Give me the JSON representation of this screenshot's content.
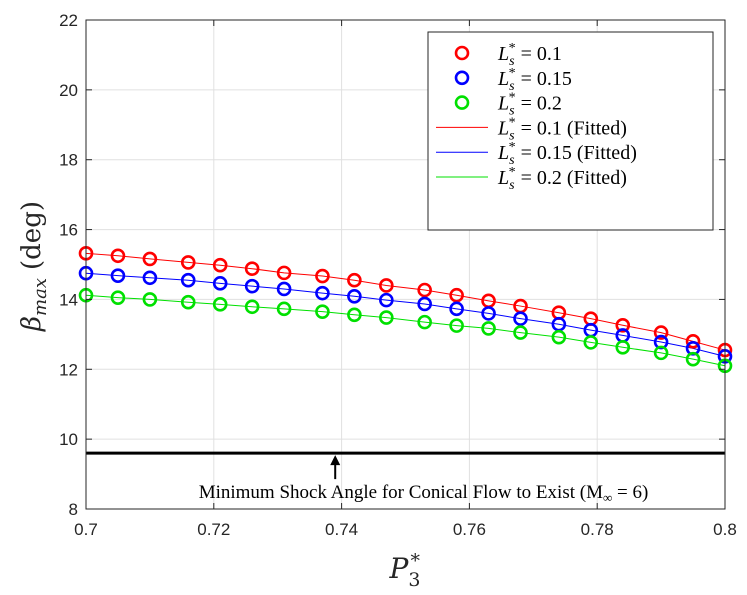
{
  "chart_data": {
    "type": "line",
    "xlabel": "P3*",
    "ylabel": "βmax (deg)",
    "xlim": [
      0.7,
      0.8
    ],
    "ylim": [
      8,
      22
    ],
    "x_ticks": [
      "0.7",
      "0.72",
      "0.74",
      "0.76",
      "0.78",
      "0.8"
    ],
    "y_ticks": [
      "8",
      "10",
      "12",
      "14",
      "16",
      "18",
      "20",
      "22"
    ],
    "grid": true,
    "legend_position": "top-right",
    "x": [
      0.7,
      0.705,
      0.71,
      0.716,
      0.721,
      0.726,
      0.731,
      0.737,
      0.742,
      0.747,
      0.753,
      0.758,
      0.763,
      0.768,
      0.774,
      0.779,
      0.784,
      0.79,
      0.795,
      0.8
    ],
    "series": [
      {
        "name": "L_s* = 0.1",
        "kind": "markers",
        "color": "#ff0000",
        "values": [
          15.32,
          15.25,
          15.16,
          15.06,
          14.98,
          14.88,
          14.76,
          14.67,
          14.55,
          14.4,
          14.27,
          14.12,
          13.96,
          13.81,
          13.62,
          13.45,
          13.26,
          13.05,
          12.8,
          12.55
        ]
      },
      {
        "name": "L_s* = 0.15",
        "kind": "markers",
        "color": "#0000ff",
        "values": [
          14.75,
          14.68,
          14.62,
          14.55,
          14.46,
          14.38,
          14.3,
          14.18,
          14.09,
          13.98,
          13.87,
          13.73,
          13.6,
          13.45,
          13.29,
          13.12,
          12.97,
          12.78,
          12.6,
          12.37
        ]
      },
      {
        "name": "L_s* = 0.2",
        "kind": "markers",
        "color": "#00e000",
        "values": [
          14.12,
          14.05,
          14.0,
          13.92,
          13.86,
          13.79,
          13.73,
          13.65,
          13.56,
          13.48,
          13.35,
          13.25,
          13.17,
          13.05,
          12.92,
          12.77,
          12.63,
          12.47,
          12.29,
          12.1
        ]
      },
      {
        "name": "L_s* = 0.1 (Fitted)",
        "kind": "line",
        "color": "#ff0000",
        "values": [
          15.32,
          15.25,
          15.16,
          15.06,
          14.98,
          14.88,
          14.76,
          14.67,
          14.55,
          14.4,
          14.27,
          14.12,
          13.96,
          13.81,
          13.62,
          13.45,
          13.26,
          13.05,
          12.8,
          12.55
        ]
      },
      {
        "name": "L_s* = 0.15 (Fitted)",
        "kind": "line",
        "color": "#0000ff",
        "values": [
          14.75,
          14.68,
          14.62,
          14.55,
          14.46,
          14.38,
          14.3,
          14.18,
          14.09,
          13.98,
          13.87,
          13.73,
          13.6,
          13.45,
          13.29,
          13.12,
          12.97,
          12.78,
          12.6,
          12.37
        ]
      },
      {
        "name": "L_s* = 0.2 (Fitted)",
        "kind": "line",
        "color": "#00e000",
        "values": [
          14.12,
          14.05,
          14.0,
          13.92,
          13.86,
          13.79,
          13.73,
          13.65,
          13.56,
          13.48,
          13.35,
          13.25,
          13.17,
          13.05,
          12.92,
          12.77,
          12.63,
          12.47,
          12.29,
          12.1
        ]
      }
    ],
    "legend": [
      {
        "sym": "L",
        "sub": "s",
        "sup": "*",
        "rest": " = 0.1",
        "kind": "markers",
        "color": "#ff0000"
      },
      {
        "sym": "L",
        "sub": "s",
        "sup": "*",
        "rest": " = 0.15",
        "kind": "markers",
        "color": "#0000ff"
      },
      {
        "sym": "L",
        "sub": "s",
        "sup": "*",
        "rest": " = 0.2",
        "kind": "markers",
        "color": "#00e000"
      },
      {
        "sym": "L",
        "sub": "s",
        "sup": "*",
        "rest": " = 0.1 (Fitted)",
        "kind": "line",
        "color": "#ff0000"
      },
      {
        "sym": "L",
        "sub": "s",
        "sup": "*",
        "rest": " = 0.15 (Fitted)",
        "kind": "line",
        "color": "#0000ff"
      },
      {
        "sym": "L",
        "sub": "s",
        "sup": "*",
        "rest": " = 0.2 (Fitted)",
        "kind": "line",
        "color": "#00e000"
      }
    ],
    "reference_line": {
      "y": 9.6,
      "color": "#000000"
    },
    "annotation": {
      "text": "Minimum Shock Angle for Conical Flow to Exist (M",
      "sub": "∞",
      "suffix": " = 6)",
      "arrow_x": 0.739
    }
  }
}
